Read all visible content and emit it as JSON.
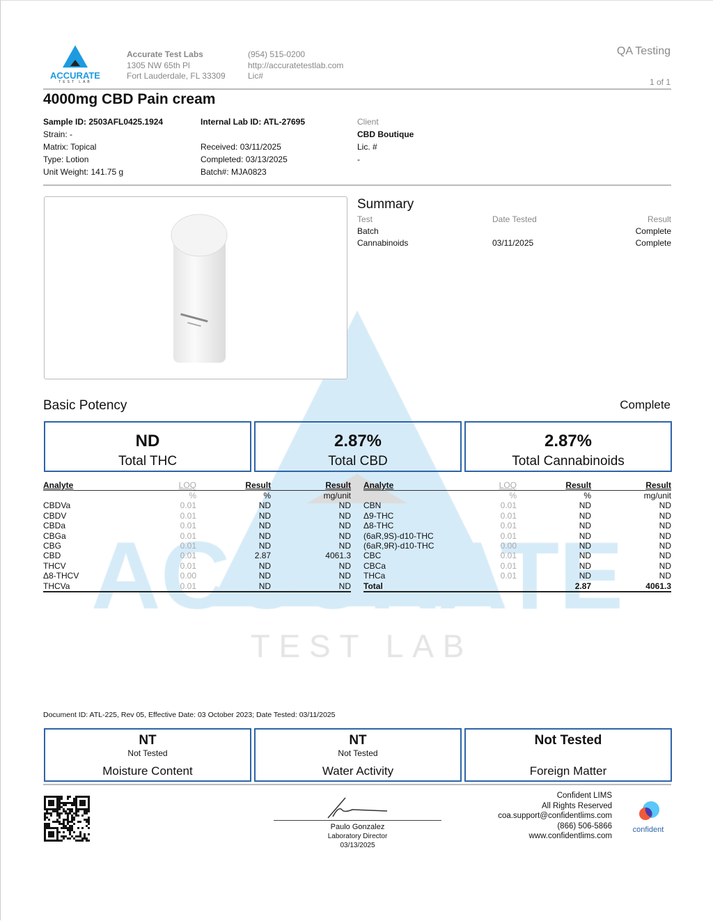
{
  "lab": {
    "name": "Accurate Test Labs",
    "address1": "1305 NW 65th Pl",
    "address2": "Fort Lauderdale, FL 33309",
    "phone": "(954) 515-0200",
    "website": "http://accuratetestlab.com",
    "license": "Lic#",
    "logo_text": "ACCURATE",
    "logo_sub": "TEST LAB"
  },
  "header": {
    "qa": "QA Testing",
    "page": "1 of 1"
  },
  "product": {
    "title": "4000mg CBD Pain cream"
  },
  "sample": {
    "sample_id": "Sample ID: 2503AFL0425.1924",
    "strain": "Strain: -",
    "matrix": "Matrix: Topical",
    "type": "Type: Lotion",
    "unit_weight": "Unit Weight: 141.75 g",
    "internal_id": "Internal Lab ID: ATL-27695",
    "received": "Received: 03/11/2025",
    "completed": "Completed: 03/13/2025",
    "batch": "Batch#: MJA0823",
    "client_label": "Client",
    "client": "CBD Boutique",
    "client_lic": "Lic. #",
    "client_lic_val": "-"
  },
  "summary": {
    "title": "Summary",
    "cols": [
      "Test",
      "Date Tested",
      "Result"
    ],
    "rows": [
      [
        "Batch",
        "",
        "Complete"
      ],
      [
        "Cannabinoids",
        "03/11/2025",
        "Complete"
      ]
    ]
  },
  "potency": {
    "title": "Basic Potency",
    "status": "Complete",
    "boxes": [
      {
        "value": "ND",
        "label": "Total THC"
      },
      {
        "value": "2.87%",
        "label": "Total CBD"
      },
      {
        "value": "2.87%",
        "label": "Total Cannabinoids"
      }
    ],
    "headers": [
      "Analyte",
      "LOQ",
      "Result",
      "Result"
    ],
    "units": [
      "",
      "%",
      "%",
      "mg/unit"
    ],
    "left": [
      [
        "CBDVa",
        "0.01",
        "ND",
        "ND"
      ],
      [
        "CBDV",
        "0.01",
        "ND",
        "ND"
      ],
      [
        "CBDa",
        "0.01",
        "ND",
        "ND"
      ],
      [
        "CBGa",
        "0.01",
        "ND",
        "ND"
      ],
      [
        "CBG",
        "0.01",
        "ND",
        "ND"
      ],
      [
        "CBD",
        "0.01",
        "2.87",
        "4061.3"
      ],
      [
        "THCV",
        "0.01",
        "ND",
        "ND"
      ],
      [
        "Δ8-THCV",
        "0.00",
        "ND",
        "ND"
      ],
      [
        "THCVa",
        "0.01",
        "ND",
        "ND"
      ]
    ],
    "right": [
      [
        "CBN",
        "0.01",
        "ND",
        "ND"
      ],
      [
        "Δ9-THC",
        "0.01",
        "ND",
        "ND"
      ],
      [
        "Δ8-THC",
        "0.01",
        "ND",
        "ND"
      ],
      [
        "(6aR,9S)-d10-THC",
        "0.01",
        "ND",
        "ND"
      ],
      [
        "(6aR,9R)-d10-THC",
        "0.00",
        "ND",
        "ND"
      ],
      [
        "CBC",
        "0.01",
        "ND",
        "ND"
      ],
      [
        "CBCa",
        "0.01",
        "ND",
        "ND"
      ],
      [
        "THCa",
        "0.01",
        "ND",
        "ND"
      ],
      [
        "Total",
        "",
        "2.87",
        "4061.3"
      ]
    ]
  },
  "watermark": {
    "big": "ACCURATE",
    "sub": "T E S T   L A B"
  },
  "document_id": "Document ID: ATL-225, Rev 05, Effective Date: 03 October 2023; Date Tested: 03/11/2025",
  "other_tests": [
    {
      "value": "NT",
      "sub": "Not Tested",
      "label": "Moisture Content"
    },
    {
      "value": "NT",
      "sub": "Not Tested",
      "label": "Water Activity"
    },
    {
      "value": "Not Tested",
      "sub": "",
      "label": "Foreign Matter"
    }
  ],
  "signature": {
    "name": "Paulo Gonzalez",
    "role": "Laboratory Director",
    "date": "03/13/2025"
  },
  "footer": {
    "lines": [
      "Confident LIMS",
      "All Rights Reserved",
      "coa.support@confidentlims.com",
      "(866) 506-5866",
      "www.confidentlims.com"
    ],
    "logo_text": "confident"
  },
  "colors": {
    "accent": "#2d64a8",
    "logo_blue": "#1e9be0",
    "watermark": "#d6ebf8"
  }
}
